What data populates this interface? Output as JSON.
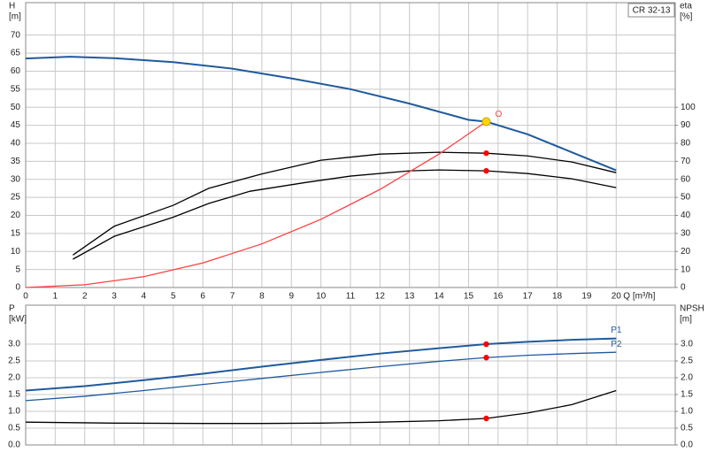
{
  "chart_data": [
    {
      "type": "line",
      "title": "CR 32-13",
      "xlabel": "Q [m³/h]",
      "ylabel": "H",
      "yunit": "[m]",
      "y2label": "eta",
      "y2unit": "[%]",
      "xlim": [
        0,
        22
      ],
      "ylim": [
        0,
        79
      ],
      "y2lim": [
        0,
        158
      ],
      "xticks": [
        0,
        1,
        2,
        3,
        4,
        5,
        6,
        7,
        8,
        9,
        10,
        11,
        12,
        13,
        14,
        15,
        16,
        17,
        18,
        19,
        20
      ],
      "yticks": [
        0,
        5,
        10,
        15,
        20,
        25,
        30,
        35,
        40,
        45,
        50,
        55,
        60,
        65,
        70
      ],
      "y2ticks": [
        0,
        10,
        20,
        30,
        40,
        50,
        60,
        70,
        80,
        90,
        100
      ],
      "grid": true,
      "series": [
        {
          "color": "#1f5a9e",
          "x": [
            0,
            1.5,
            3,
            5,
            7,
            9,
            11,
            13,
            15,
            15.6,
            17,
            18.5,
            20
          ],
          "values": [
            63.5,
            64,
            63.6,
            62.5,
            60.7,
            58,
            55,
            51,
            46.5,
            46,
            42.5,
            37.5,
            32.5
          ]
        },
        {
          "color": "#000000",
          "axis": "y2",
          "x": [
            1.6,
            3,
            5,
            6.2,
            8,
            10,
            12,
            14,
            15.6,
            17,
            18.5,
            20
          ],
          "values": [
            18,
            34,
            45.6,
            55,
            63,
            70.6,
            74,
            75,
            74.5,
            73,
            69.6,
            63.7
          ]
        },
        {
          "color": "#000000",
          "axis": "y2",
          "x": [
            1.6,
            3,
            5,
            6.2,
            7.6,
            9.5,
            11,
            13,
            14,
            15.6,
            17,
            18.5,
            20
          ],
          "values": [
            15.7,
            28.4,
            39,
            46.6,
            53.4,
            58.3,
            61.8,
            64.7,
            65.2,
            64.7,
            63.2,
            60.3,
            55.4
          ]
        },
        {
          "name": "O",
          "color": "#ff4040",
          "x": [
            0,
            2,
            4,
            6,
            8,
            10,
            12,
            14,
            15.6
          ],
          "values": [
            0,
            0.76,
            3,
            6.8,
            12.1,
            18.9,
            27.2,
            37,
            46
          ]
        }
      ],
      "points": [
        {
          "x": 15.6,
          "y": 46,
          "color": "#ffd700"
        },
        {
          "x": 15.6,
          "y": 74.5,
          "axis": "y2",
          "color": "#ff0000"
        },
        {
          "x": 15.6,
          "y": 64.7,
          "axis": "y2",
          "color": "#ff0000"
        }
      ]
    },
    {
      "type": "line",
      "ylabel": "P",
      "yunit": "[kW]",
      "y2label": "NPSH",
      "y2unit": "[m]",
      "xlim": [
        0,
        22
      ],
      "ylim": [
        0,
        4.16
      ],
      "y2lim": [
        0,
        4.16
      ],
      "yticks": [
        {
          "value": 0,
          "label": "0.0"
        },
        0.5,
        {
          "value": 1,
          "label": "1.0"
        },
        1.5,
        {
          "value": 2,
          "label": "2.0"
        },
        2.5,
        {
          "value": 3,
          "label": "3.0"
        }
      ],
      "y2ticks": [
        {
          "value": 0,
          "label": "0.0"
        },
        0.5,
        {
          "value": 1,
          "label": "1.0"
        },
        1.5,
        {
          "value": 2,
          "label": "2.0"
        },
        2.5,
        {
          "value": 3,
          "label": "3.0"
        }
      ],
      "grid": true,
      "series": [
        {
          "name": "P1",
          "color": "#1f5a9e",
          "x": [
            0,
            2,
            4,
            6,
            8,
            10,
            12,
            14,
            15.6,
            17,
            18.5,
            20
          ],
          "values": [
            1.62,
            1.75,
            1.93,
            2.12,
            2.33,
            2.53,
            2.72,
            2.88,
            3.0,
            3.07,
            3.13,
            3.17
          ]
        },
        {
          "name": "P2",
          "color": "#1f5a9e",
          "x": [
            0,
            2,
            4,
            6,
            8,
            10,
            12,
            14,
            15.6,
            17,
            18.5,
            20
          ],
          "values": [
            1.32,
            1.45,
            1.62,
            1.8,
            1.98,
            2.16,
            2.33,
            2.49,
            2.6,
            2.67,
            2.72,
            2.76
          ]
        },
        {
          "color": "#000000",
          "axis": "y2",
          "x": [
            0,
            3,
            6,
            8,
            10,
            12,
            14,
            15.6,
            17,
            18.5,
            20
          ],
          "values": [
            0.68,
            0.65,
            0.64,
            0.64,
            0.65,
            0.68,
            0.72,
            0.79,
            0.95,
            1.2,
            1.62
          ]
        }
      ],
      "points": [
        {
          "x": 15.6,
          "y": 3.0,
          "color": "#ff0000"
        },
        {
          "x": 15.6,
          "y": 2.6,
          "color": "#ff0000"
        },
        {
          "x": 15.6,
          "y": 0.79,
          "axis": "y2",
          "color": "#ff0000"
        }
      ]
    }
  ]
}
